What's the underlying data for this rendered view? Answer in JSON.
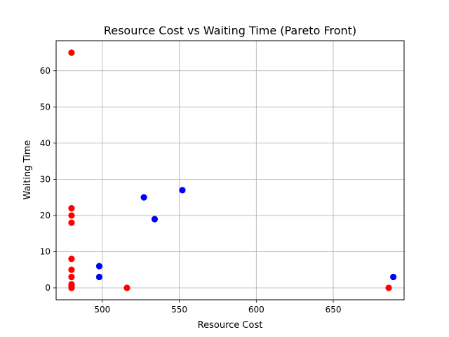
{
  "chart_data": {
    "type": "scatter",
    "title": "Resource Cost vs Waiting Time (Pareto Front)",
    "xlabel": "Resource Cost",
    "ylabel": "Waiting Time",
    "xlim": [
      470,
      696
    ],
    "ylim": [
      -3.3,
      68.3
    ],
    "xticks": [
      500,
      550,
      600,
      650
    ],
    "yticks": [
      0,
      10,
      20,
      30,
      40,
      50,
      60
    ],
    "grid": true,
    "series": [
      {
        "color": "#ff0000",
        "points": [
          {
            "x": 480,
            "y": 65
          },
          {
            "x": 480,
            "y": 22
          },
          {
            "x": 480,
            "y": 20
          },
          {
            "x": 480,
            "y": 18
          },
          {
            "x": 480,
            "y": 8
          },
          {
            "x": 480,
            "y": 5
          },
          {
            "x": 480,
            "y": 3
          },
          {
            "x": 480,
            "y": 1
          },
          {
            "x": 480,
            "y": 0.5
          },
          {
            "x": 480,
            "y": 0
          },
          {
            "x": 516,
            "y": 0
          },
          {
            "x": 686,
            "y": 0
          }
        ]
      },
      {
        "color": "#0000ff",
        "points": [
          {
            "x": 498,
            "y": 6
          },
          {
            "x": 498,
            "y": 3
          },
          {
            "x": 527,
            "y": 25
          },
          {
            "x": 534,
            "y": 19
          },
          {
            "x": 552,
            "y": 27
          },
          {
            "x": 689,
            "y": 3
          }
        ]
      }
    ]
  }
}
